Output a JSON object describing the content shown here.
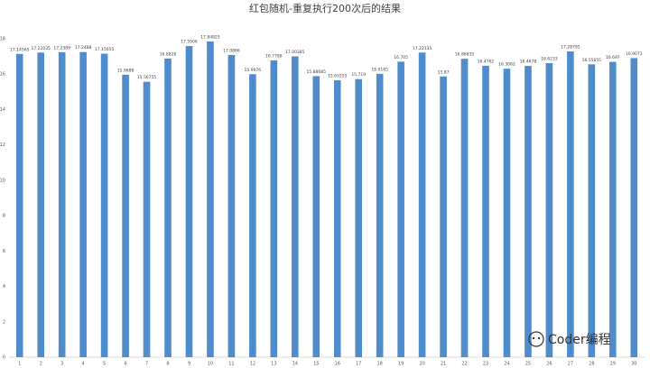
{
  "chart_data": {
    "type": "bar",
    "title": "红包随机-重复执行200次后的结果",
    "categories": [
      "1",
      "2",
      "3",
      "4",
      "5",
      "6",
      "7",
      "8",
      "9",
      "10",
      "11",
      "12",
      "13",
      "14",
      "15",
      "16",
      "17",
      "18",
      "19",
      "20",
      "21",
      "22",
      "23",
      "24",
      "25",
      "26",
      "27",
      "28",
      "29",
      "30"
    ],
    "values": [
      17.14565,
      17.22035,
      17.2389,
      17.2488,
      17.15655,
      15.9688,
      15.56755,
      16.8828,
      17.5906,
      17.84825,
      17.0866,
      15.9976,
      16.7788,
      17.00385,
      15.88685,
      15.65555,
      15.719,
      16.0185,
      16.705,
      17.22135,
      15.87,
      16.86835,
      16.4762,
      16.3062,
      16.4678,
      16.6233,
      17.28795,
      16.55655,
      16.697,
      16.9071
    ],
    "color": "#4e8ccb",
    "ylim": [
      0,
      18
    ],
    "yticks": [
      0,
      2,
      4,
      6,
      8,
      10,
      12,
      14,
      16,
      18
    ],
    "grid": false
  },
  "watermark": "Coder编程"
}
